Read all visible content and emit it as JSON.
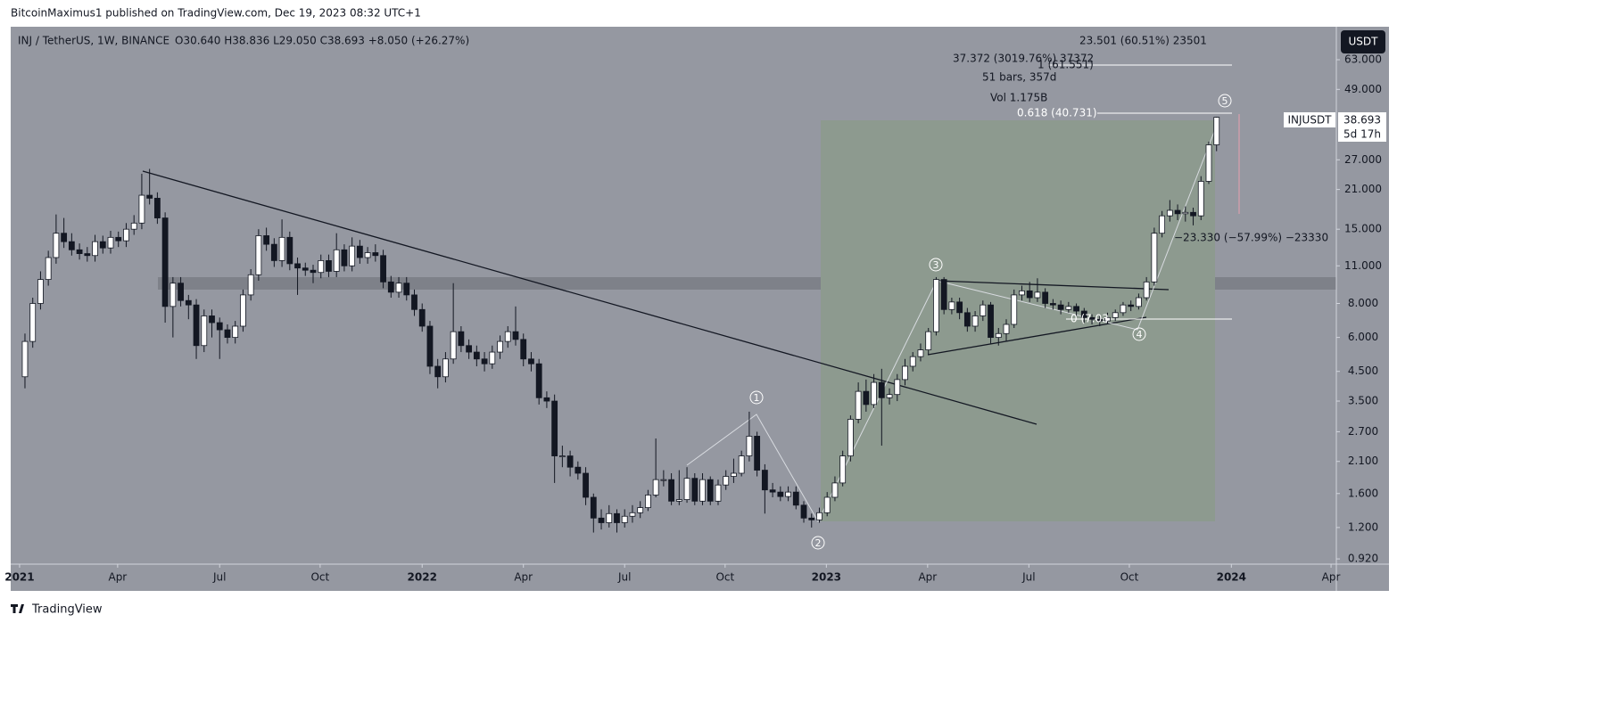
{
  "page": {
    "publisher": "BitcoinMaximus1 published on TradingView.com, Dec 19, 2023 08:32 UTC+1",
    "footer": "TradingView"
  },
  "chart_data": {
    "type": "candlestick",
    "title": "INJ / TetherUS, 1W, BINANCE",
    "ohlc_text": "O30.640 H38.836 L29.050 C38.693 +8.050 (+26.27%)",
    "symbol": "INJUSDT",
    "last_price_label": "38.693",
    "countdown": "5d 17h",
    "currency": "USDT",
    "log_scale": true,
    "grid": false,
    "up_color": "#ffffff",
    "down_color": "#131722",
    "ylim": [
      0.88,
      83.3
    ],
    "yticks": [
      {
        "value": 0.92,
        "label": "0.920"
      },
      {
        "value": 1.2,
        "label": "1.200"
      },
      {
        "value": 1.6,
        "label": "1.600"
      },
      {
        "value": 2.1,
        "label": "2.100"
      },
      {
        "value": 2.7,
        "label": "2.700"
      },
      {
        "value": 3.5,
        "label": "3.500"
      },
      {
        "value": 4.5,
        "label": "4.500"
      },
      {
        "value": 6,
        "label": "6.000"
      },
      {
        "value": 8,
        "label": "8.000"
      },
      {
        "value": 11,
        "label": "11.000"
      },
      {
        "value": 15,
        "label": "15.000"
      },
      {
        "value": 21,
        "label": "21.000"
      },
      {
        "value": 27,
        "label": "27.000"
      },
      {
        "value": 49,
        "label": "49.000"
      },
      {
        "value": 63,
        "label": "63.000"
      }
    ],
    "xlim": [
      -1.83,
      168.38
    ],
    "xticks": [
      {
        "value": -0.69,
        "label": "2021"
      },
      {
        "value": 11.9,
        "label": "Apr"
      },
      {
        "value": 25,
        "label": "Jul"
      },
      {
        "value": 37.9,
        "label": "Oct"
      },
      {
        "value": 51,
        "label": "2022"
      },
      {
        "value": 64,
        "label": "Apr"
      },
      {
        "value": 77,
        "label": "Jul"
      },
      {
        "value": 89.9,
        "label": "Oct"
      },
      {
        "value": 102.9,
        "label": "2023"
      },
      {
        "value": 115.9,
        "label": "Apr"
      },
      {
        "value": 128.9,
        "label": "Jul"
      },
      {
        "value": 141.8,
        "label": "Oct"
      },
      {
        "value": 154.9,
        "label": "2024"
      },
      {
        "value": 167.7,
        "label": "Apr"
      }
    ],
    "open": [
      4.3,
      5.8,
      8.0,
      9.8,
      11.8,
      14.5,
      13.5,
      12.6,
      12.2,
      12.0,
      13.5,
      12.8,
      14.0,
      13.6,
      15.0,
      15.8,
      20.0,
      19.5,
      16.5,
      7.8,
      9.5,
      8.2,
      7.9,
      5.6,
      7.2,
      6.8,
      6.4,
      6.0,
      6.6,
      8.6,
      10.2,
      14.2,
      13.2,
      11.5,
      14.0,
      11.2,
      10.8,
      10.6,
      10.4,
      11.5,
      10.5,
      12.6,
      11.0,
      13.0,
      11.8,
      12.3,
      12.0,
      9.6,
      8.8,
      9.5,
      8.6,
      7.6,
      6.6,
      4.7,
      4.3,
      5.0,
      6.3,
      5.6,
      5.3,
      5.0,
      4.8,
      5.3,
      5.8,
      6.3,
      5.9,
      5.0,
      4.8,
      3.6,
      3.5,
      2.2,
      2.2,
      2.0,
      1.9,
      1.55,
      1.3,
      1.25,
      1.35,
      1.25,
      1.32,
      1.36,
      1.42,
      1.58,
      1.8,
      1.8,
      1.5,
      1.52,
      1.82,
      1.5,
      1.8,
      1.5,
      1.72,
      1.85,
      1.9,
      2.2,
      2.6,
      1.95,
      1.65,
      1.62,
      1.56,
      1.62,
      1.45,
      1.3,
      1.28,
      1.36,
      1.55,
      1.75,
      2.2,
      3.0,
      3.8,
      3.4,
      4.1,
      3.6,
      3.7,
      4.2,
      4.7,
      5.1,
      5.4,
      6.3,
      9.8,
      7.6,
      8.1,
      7.4,
      6.6,
      7.2,
      7.9,
      6.0,
      6.2,
      6.7,
      8.6,
      8.9,
      8.4,
      8.8,
      8.0,
      7.9,
      7.6,
      7.8,
      7.5,
      7.1,
      7.0,
      6.9,
      7.1,
      7.4,
      7.9,
      7.8,
      8.4,
      9.6,
      14.5,
      16.8,
      17.6,
      17.1,
      17.3,
      16.8,
      22.5,
      30.64
    ],
    "high": [
      6.2,
      8.4,
      10.5,
      12.5,
      17.0,
      16.5,
      14.5,
      13.3,
      12.9,
      14.3,
      14.2,
      14.8,
      14.7,
      15.8,
      16.9,
      24.0,
      25.0,
      20.5,
      17.3,
      10.0,
      10.0,
      8.6,
      8.3,
      7.6,
      7.6,
      7.1,
      6.7,
      6.9,
      9.0,
      10.7,
      15.0,
      15.2,
      13.9,
      16.3,
      14.7,
      11.8,
      11.3,
      11.1,
      12.1,
      12.1,
      14.5,
      13.2,
      14.0,
      13.7,
      12.9,
      13.2,
      12.6,
      10.1,
      10.0,
      10.0,
      9.0,
      8.0,
      6.9,
      5.0,
      5.3,
      9.5,
      6.6,
      5.9,
      5.6,
      5.3,
      5.6,
      6.1,
      6.6,
      7.8,
      6.2,
      5.3,
      5.0,
      3.8,
      3.7,
      2.4,
      2.3,
      2.1,
      2.0,
      1.6,
      1.4,
      1.45,
      1.4,
      1.4,
      1.45,
      1.5,
      1.65,
      2.55,
      1.95,
      1.9,
      1.95,
      2.0,
      1.9,
      1.9,
      1.85,
      1.8,
      1.95,
      2.15,
      2.3,
      3.2,
      2.7,
      2.05,
      1.75,
      1.7,
      1.7,
      1.7,
      1.5,
      1.35,
      1.42,
      1.62,
      1.85,
      2.3,
      3.1,
      4.1,
      4.2,
      4.4,
      4.6,
      3.9,
      4.4,
      5.0,
      5.3,
      5.7,
      6.5,
      10.0,
      10.0,
      8.4,
      8.4,
      7.7,
      7.5,
      8.2,
      8.1,
      6.5,
      7.0,
      9.0,
      9.3,
      9.6,
      9.9,
      9.1,
      8.3,
      8.2,
      8.1,
      8.0,
      7.7,
      7.3,
      7.2,
      7.4,
      7.6,
      8.1,
      8.2,
      8.7,
      10.0,
      15.2,
      17.5,
      19.2,
      18.5,
      18.2,
      18.0,
      23.5,
      31.5,
      38.836
    ],
    "low": [
      3.9,
      5.5,
      7.6,
      9.3,
      11.2,
      12.8,
      12.0,
      11.6,
      11.4,
      11.4,
      12.2,
      12.2,
      12.9,
      12.9,
      14.3,
      15.0,
      18.5,
      15.7,
      6.8,
      6.0,
      7.8,
      7.0,
      5.0,
      5.3,
      6.0,
      5.0,
      5.7,
      5.7,
      6.3,
      8.2,
      9.7,
      12.5,
      10.9,
      10.9,
      10.6,
      8.6,
      10.1,
      9.5,
      9.9,
      10.0,
      10.0,
      10.5,
      10.5,
      11.2,
      11.2,
      11.4,
      9.1,
      8.4,
      8.4,
      8.2,
      7.2,
      6.3,
      4.4,
      3.9,
      4.1,
      4.8,
      5.3,
      5.0,
      4.7,
      4.5,
      4.6,
      5.0,
      5.5,
      5.6,
      4.7,
      4.5,
      3.4,
      3.3,
      1.75,
      2.0,
      1.85,
      1.8,
      1.45,
      1.15,
      1.18,
      1.2,
      1.15,
      1.2,
      1.25,
      1.3,
      1.38,
      1.55,
      1.7,
      1.45,
      1.45,
      1.48,
      1.45,
      1.45,
      1.45,
      1.45,
      1.65,
      1.75,
      1.85,
      2.1,
      1.85,
      1.35,
      1.55,
      1.5,
      1.5,
      1.4,
      1.25,
      1.2,
      1.25,
      1.32,
      1.5,
      1.7,
      2.1,
      2.9,
      3.2,
      3.3,
      2.4,
      3.4,
      3.5,
      4.0,
      4.5,
      4.9,
      5.2,
      6.1,
      7.3,
      7.3,
      7.0,
      6.3,
      6.3,
      6.9,
      5.7,
      5.6,
      5.8,
      6.5,
      8.2,
      8.1,
      8.1,
      7.7,
      7.6,
      7.3,
      7.4,
      7.2,
      6.8,
      6.7,
      6.6,
      6.7,
      6.9,
      7.2,
      7.5,
      7.6,
      8.2,
      9.3,
      14.0,
      16.0,
      16.2,
      16.0,
      15.5,
      16.2,
      22.0,
      29.05
    ],
    "close": [
      5.8,
      8.0,
      9.8,
      11.8,
      14.5,
      13.5,
      12.6,
      12.2,
      12.0,
      13.5,
      12.8,
      14.0,
      13.6,
      15.0,
      15.8,
      20.0,
      19.5,
      16.5,
      7.8,
      9.5,
      8.2,
      7.9,
      5.6,
      7.2,
      6.8,
      6.4,
      6.0,
      6.6,
      8.6,
      10.2,
      14.2,
      13.2,
      11.5,
      14.0,
      11.2,
      10.8,
      10.6,
      10.4,
      11.5,
      10.5,
      12.6,
      11.0,
      13.0,
      11.8,
      12.3,
      12.0,
      9.6,
      8.8,
      9.5,
      8.6,
      7.6,
      6.6,
      4.7,
      4.3,
      5.0,
      6.3,
      5.6,
      5.3,
      5.0,
      4.8,
      5.3,
      5.8,
      6.3,
      5.9,
      5.0,
      4.8,
      3.6,
      3.5,
      2.2,
      2.2,
      2.0,
      1.9,
      1.55,
      1.3,
      1.25,
      1.35,
      1.25,
      1.32,
      1.36,
      1.42,
      1.58,
      1.8,
      1.8,
      1.5,
      1.52,
      1.82,
      1.5,
      1.8,
      1.5,
      1.72,
      1.85,
      1.9,
      2.2,
      2.6,
      1.95,
      1.65,
      1.62,
      1.56,
      1.62,
      1.45,
      1.3,
      1.28,
      1.36,
      1.55,
      1.75,
      2.2,
      3.0,
      3.8,
      3.4,
      4.1,
      3.6,
      3.7,
      4.2,
      4.7,
      5.1,
      5.4,
      6.3,
      9.8,
      7.6,
      8.1,
      7.4,
      6.6,
      7.2,
      7.9,
      6.0,
      6.2,
      6.7,
      8.6,
      8.9,
      8.4,
      8.8,
      8.0,
      7.9,
      7.6,
      7.8,
      7.5,
      7.1,
      7.0,
      6.9,
      7.1,
      7.4,
      7.9,
      7.8,
      8.4,
      9.6,
      14.5,
      16.8,
      17.6,
      17.1,
      17.3,
      16.8,
      22.5,
      30.64,
      38.693
    ],
    "annotations": {
      "measure_top": "23.501 (60.51%) 23501",
      "measure_change": "37.372 (3019.76%) 37372",
      "measure_bars": "51 bars, 357d",
      "measure_vol": "Vol 1.175B",
      "fib_1": "1 (61.551)",
      "fib_0618": "0.618 (40.731)",
      "fib_0": "0 (7.03",
      "measure_down": "−23.330 (−57.99%) −23330",
      "waves": [
        "1",
        "2",
        "3",
        "4",
        "5"
      ]
    }
  }
}
